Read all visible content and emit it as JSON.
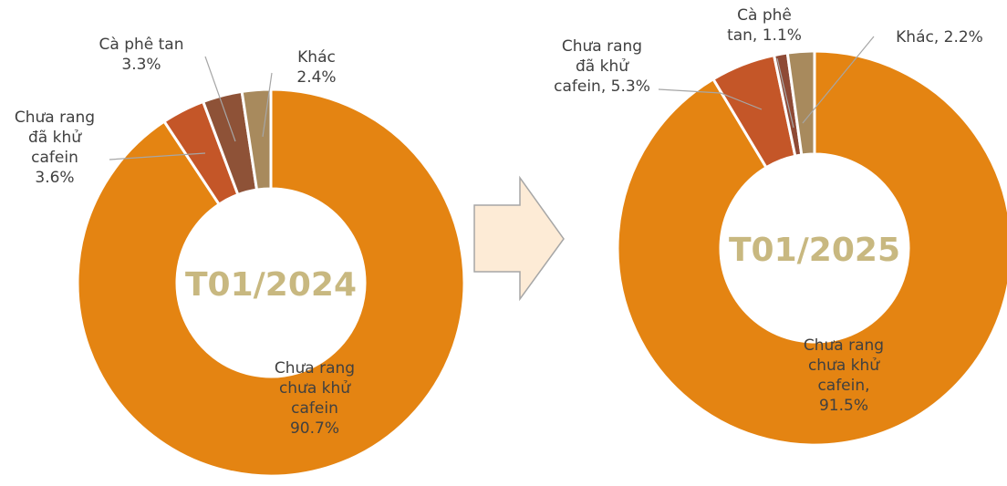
{
  "chart_data": [
    {
      "type": "donut",
      "title": "T01/2024",
      "categories": [
        "Chưa rang chưa khử cafein",
        "Chưa rang đã khử cafein",
        "Cà phê tan",
        "Khác"
      ],
      "values": [
        90.7,
        3.6,
        3.3,
        2.4
      ],
      "value_labels": [
        "90.7%",
        "3.6%",
        "3.3%",
        "2.4%"
      ],
      "colors": [
        "#E48412",
        "#C45628",
        "#8E5237",
        "#A88A5D"
      ]
    },
    {
      "type": "donut",
      "title": "T01/2025",
      "categories": [
        "Chưa rang chưa khử cafein",
        "Chưa rang đã khử cafein",
        "Cà phê tan",
        "Khác"
      ],
      "values": [
        91.5,
        5.3,
        1.1,
        2.2
      ],
      "value_labels": [
        "91.5%",
        "5.3%",
        "1.1%",
        "2.2%"
      ],
      "label_separator": ",",
      "colors": [
        "#E48412",
        "#C45628",
        "#8E4A35",
        "#A88A5D"
      ]
    }
  ]
}
